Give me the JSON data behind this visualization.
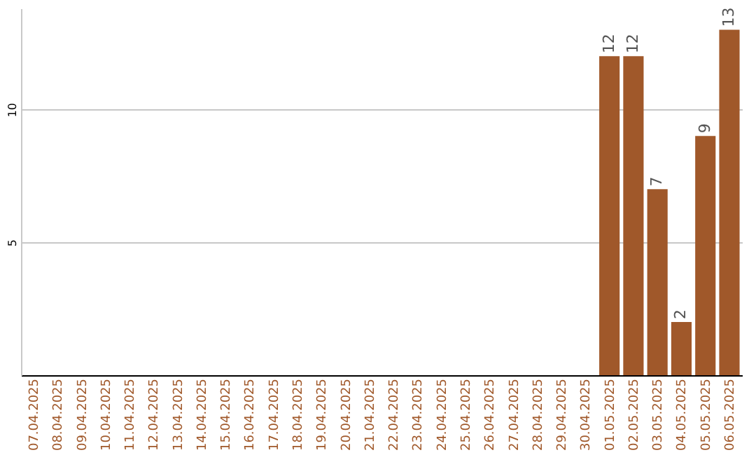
{
  "chart_data": {
    "type": "bar",
    "categories": [
      "07.04.2025",
      "08.04.2025",
      "09.04.2025",
      "10.04.2025",
      "11.04.2025",
      "12.04.2025",
      "13.04.2025",
      "14.04.2025",
      "15.04.2025",
      "16.04.2025",
      "17.04.2025",
      "18.04.2025",
      "19.04.2025",
      "20.04.2025",
      "21.04.2025",
      "22.04.2025",
      "23.04.2025",
      "24.04.2025",
      "25.04.2025",
      "26.04.2025",
      "27.04.2025",
      "28.04.2025",
      "29.04.2025",
      "30.04.2025",
      "01.05.2025",
      "02.05.2025",
      "03.05.2025",
      "04.05.2025",
      "05.05.2025",
      "06.05.2025"
    ],
    "values": [
      0,
      0,
      0,
      0,
      0,
      0,
      0,
      0,
      0,
      0,
      0,
      0,
      0,
      0,
      0,
      0,
      0,
      0,
      0,
      0,
      0,
      0,
      0,
      0,
      12,
      12,
      7,
      2,
      9,
      13
    ],
    "value_labels": [
      null,
      null,
      null,
      null,
      null,
      null,
      null,
      null,
      null,
      null,
      null,
      null,
      null,
      null,
      null,
      null,
      null,
      null,
      null,
      null,
      null,
      null,
      null,
      null,
      "12",
      "12",
      "7",
      "2",
      "9",
      "13"
    ],
    "color": "#a0582a",
    "ylim": [
      0,
      13.8
    ],
    "yticks": [
      5,
      10
    ],
    "grid": "y"
  }
}
